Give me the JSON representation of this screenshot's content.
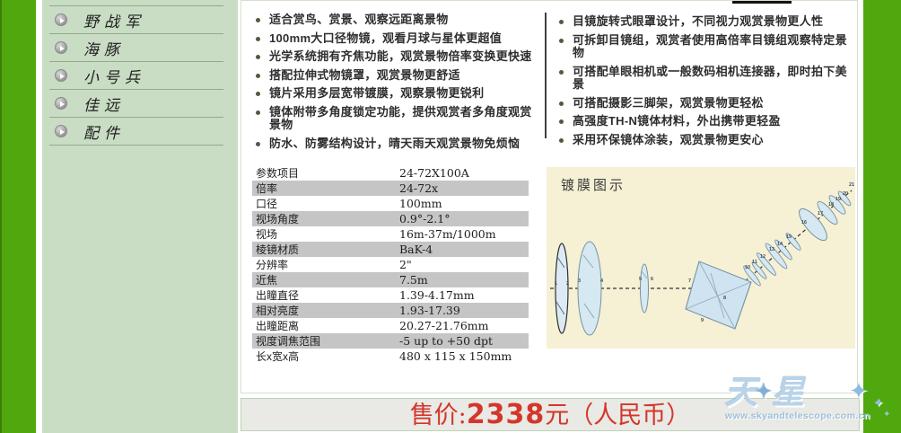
{
  "sidebar": {
    "items": [
      {
        "label": "野战军"
      },
      {
        "label": "海豚"
      },
      {
        "label": "小号兵"
      },
      {
        "label": "佳远"
      },
      {
        "label": "配件"
      }
    ]
  },
  "features": {
    "left": [
      "适合赏鸟、赏景、观察远距离景物",
      "100mm大口径物镜，观看月球与星体更超值",
      "光学系统拥有齐焦功能，观赏景物倍率变换更快速",
      "搭配拉伸式物镜罩，观赏景物更舒适",
      "镜片采用多层宽带镀膜，观察景物更锐利",
      "镜体附带多角度锁定功能，提供观赏者多角度观赏景物",
      "防水、防雾结构设计，晴天雨天观赏景物免烦恼"
    ],
    "right": [
      "目镜旋转式眼罩设计，不同视力观赏景物更人性",
      "可拆卸目镜组，观赏者使用高倍率目镜组观察特定景物",
      "可搭配单眼相机或一般数码相机连接器，即时拍下美景",
      "可搭配摄影三脚架，观赏景物更轻松",
      "高强度TH-N镜体材料，外出携带更轻盈",
      "采用环保镜体涂装，观赏景物更安心"
    ]
  },
  "spec_table": {
    "rows": [
      {
        "label": "参数项目",
        "value": "24-72X100A"
      },
      {
        "label": "倍率",
        "value": "24-72x"
      },
      {
        "label": "口径",
        "value": "100mm"
      },
      {
        "label": "视场角度",
        "value": "0.9°-2.1°"
      },
      {
        "label": "视场",
        "value": "16m-37m/1000m"
      },
      {
        "label": "棱镜材质",
        "value": "BaK-4"
      },
      {
        "label": "分辨率",
        "value": "2\""
      },
      {
        "label": "近焦",
        "value": "7.5m"
      },
      {
        "label": "出瞳直径",
        "value": "1.39-4.17mm"
      },
      {
        "label": "相对亮度",
        "value": "1.93-17.39"
      },
      {
        "label": "出瞳距离",
        "value": "20.27-21.76mm"
      },
      {
        "label": "视度调焦范围",
        "value": "-5 up to +50 dpt"
      },
      {
        "label": "长x宽x高",
        "value": "480 x 115 x 150mm"
      }
    ]
  },
  "diagram": {
    "title": "镀膜图示",
    "surface_count": 21
  },
  "price": {
    "prefix": "售价:",
    "amount": "2338",
    "suffix": "元（人民币）"
  },
  "watermark": {
    "logo_left": "天",
    "logo_star": "✦",
    "logo_right": "星",
    "url": "www.skyandtelescope.com.cn"
  },
  "colors": {
    "accent_green": "#4fa80d",
    "sidebar_bg": "#c9dcc4",
    "price_red": "#d4362a",
    "diagram_bg": "#f6f0d5",
    "table_alt_row": "#c5c5c5"
  }
}
